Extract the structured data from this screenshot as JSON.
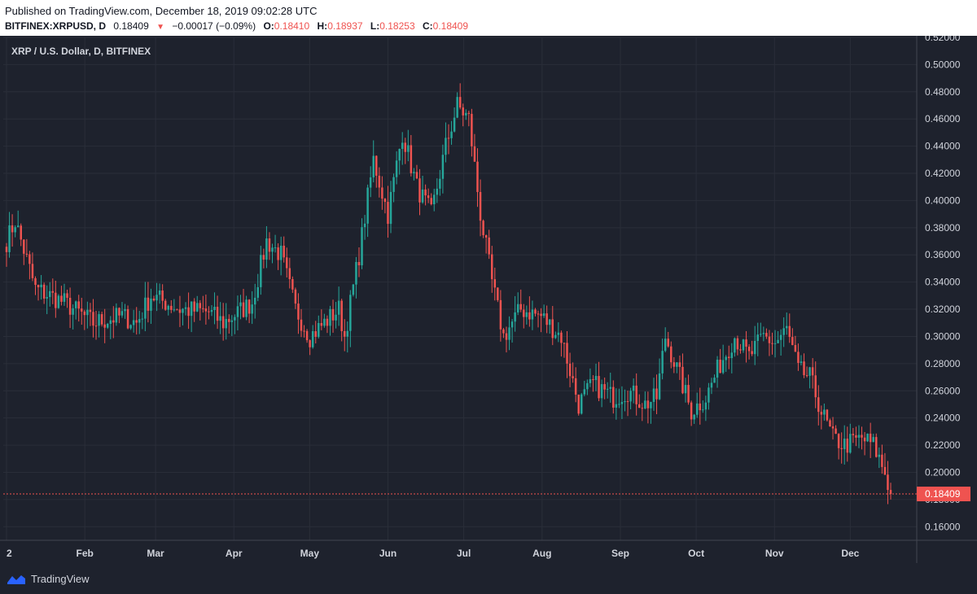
{
  "header": {
    "published": "Published on TradingView.com, December 18, 2019 09:02:28 UTC",
    "symbol": "BITFINEX:XRPUSD, D",
    "last": "0.18409",
    "change": "−0.00017 (−0.09%)",
    "o_label": "O:",
    "o_val": "0.18410",
    "h_label": "H:",
    "h_val": "0.18937",
    "l_label": "L:",
    "l_val": "0.18253",
    "c_label": "C:",
    "c_val": "0.18409"
  },
  "legend_title": "XRP / U.S. Dollar, D, BITFINEX",
  "brand": "TradingView",
  "colors": {
    "up": "#26a69a",
    "down": "#ef5350",
    "grid": "#2a2e39",
    "bg": "#1e222d",
    "axis_text": "#d1d4dc"
  },
  "chart_data": {
    "type": "candlestick",
    "ylim": [
      0.15,
      0.52
    ],
    "y_ticks": [
      "0.52000",
      "0.50000",
      "0.48000",
      "0.46000",
      "0.44000",
      "0.42000",
      "0.40000",
      "0.38000",
      "0.36000",
      "0.34000",
      "0.32000",
      "0.30000",
      "0.28000",
      "0.26000",
      "0.24000",
      "0.22000",
      "0.20000",
      "0.18000",
      "0.16000"
    ],
    "x_ticks": [
      "2",
      "Feb",
      "Mar",
      "Apr",
      "May",
      "Jun",
      "Jul",
      "Aug",
      "Sep",
      "Oct",
      "Nov",
      "Dec"
    ],
    "last_price_label": "0.18409",
    "last_price": 0.18409,
    "anchors": [
      [
        0,
        0.37
      ],
      [
        3,
        0.385
      ],
      [
        10,
        0.335
      ],
      [
        20,
        0.325
      ],
      [
        30,
        0.31
      ],
      [
        40,
        0.315
      ],
      [
        45,
        0.31
      ],
      [
        50,
        0.33
      ],
      [
        60,
        0.32
      ],
      [
        70,
        0.318
      ],
      [
        75,
        0.31
      ],
      [
        85,
        0.325
      ],
      [
        90,
        0.37
      ],
      [
        95,
        0.36
      ],
      [
        100,
        0.32
      ],
      [
        105,
        0.3
      ],
      [
        110,
        0.31
      ],
      [
        115,
        0.32
      ],
      [
        117,
        0.3
      ],
      [
        122,
        0.36
      ],
      [
        127,
        0.43
      ],
      [
        132,
        0.39
      ],
      [
        137,
        0.45
      ],
      [
        142,
        0.41
      ],
      [
        147,
        0.39
      ],
      [
        152,
        0.44
      ],
      [
        156,
        0.47
      ],
      [
        160,
        0.46
      ],
      [
        164,
        0.39
      ],
      [
        168,
        0.34
      ],
      [
        172,
        0.3
      ],
      [
        178,
        0.32
      ],
      [
        185,
        0.315
      ],
      [
        192,
        0.3
      ],
      [
        198,
        0.25
      ],
      [
        203,
        0.265
      ],
      [
        210,
        0.255
      ],
      [
        215,
        0.26
      ],
      [
        221,
        0.25
      ],
      [
        225,
        0.255
      ],
      [
        228,
        0.3
      ],
      [
        233,
        0.27
      ],
      [
        237,
        0.245
      ],
      [
        242,
        0.255
      ],
      [
        247,
        0.28
      ],
      [
        252,
        0.3
      ],
      [
        257,
        0.285
      ],
      [
        262,
        0.3
      ],
      [
        266,
        0.295
      ],
      [
        270,
        0.305
      ],
      [
        274,
        0.275
      ],
      [
        278,
        0.27
      ],
      [
        282,
        0.245
      ],
      [
        286,
        0.225
      ],
      [
        290,
        0.22
      ],
      [
        296,
        0.225
      ],
      [
        300,
        0.22
      ],
      [
        304,
        0.2
      ],
      [
        306,
        0.1841
      ]
    ],
    "series": [
      {
        "close": 0.18409
      }
    ]
  }
}
